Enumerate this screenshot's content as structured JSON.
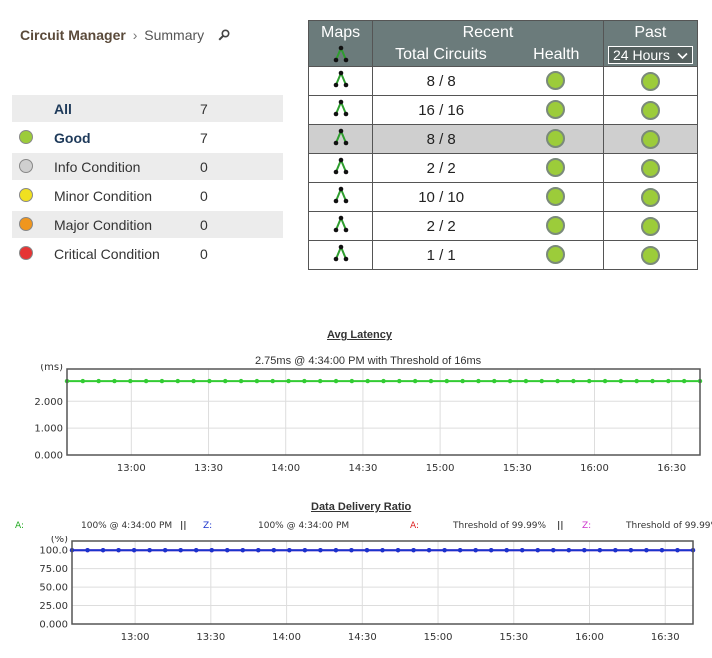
{
  "header": {
    "app_title": "Circuit Manager",
    "separator": "›",
    "page_title": "Summary"
  },
  "summary": {
    "rows": [
      {
        "label": "All",
        "count": "7",
        "color": null
      },
      {
        "label": "Good",
        "count": "7",
        "color": "#9ccc3a"
      },
      {
        "label": "Info Condition",
        "count": "0",
        "color": "#cfcfcf"
      },
      {
        "label": "Minor Condition",
        "count": "0",
        "color": "#f0e020"
      },
      {
        "label": "Major Condition",
        "count": "0",
        "color": "#f0961e"
      },
      {
        "label": "Critical Condition",
        "count": "0",
        "color": "#e53535"
      }
    ]
  },
  "maps_table": {
    "headers": {
      "maps": "Maps",
      "recent": "Recent",
      "past": "Past",
      "total_circuits": "Total Circuits",
      "health": "Health",
      "period": "24 Hours"
    },
    "rows": [
      {
        "total_circuits": "8 / 8",
        "health_color": "#9ccc3a",
        "past_color": "#9ccc3a"
      },
      {
        "total_circuits": "16 / 16",
        "health_color": "#9ccc3a",
        "past_color": "#9ccc3a"
      },
      {
        "total_circuits": "8 / 8",
        "health_color": "#9ccc3a",
        "past_color": "#9ccc3a"
      },
      {
        "total_circuits": "2 / 2",
        "health_color": "#9ccc3a",
        "past_color": "#9ccc3a"
      },
      {
        "total_circuits": "10 / 10",
        "health_color": "#9ccc3a",
        "past_color": "#9ccc3a"
      },
      {
        "total_circuits": "2 / 2",
        "health_color": "#9ccc3a",
        "past_color": "#9ccc3a"
      },
      {
        "total_circuits": "1 / 1",
        "health_color": "#9ccc3a",
        "past_color": "#9ccc3a"
      }
    ]
  },
  "latency_chart": {
    "title": "Avg Latency",
    "subtitle": "2.75ms @ 4:34:00 PM  with Threshold of 16ms"
  },
  "delivery_chart": {
    "title": "Data Delivery Ratio",
    "legend": {
      "a_label": "A:",
      "a_value": "100% @ 4:34:00 PM",
      "separator": "||",
      "z_label": "Z:",
      "z_value": "100% @ 4:34:00 PM",
      "a_threshold_label": "A:",
      "a_threshold": "Threshold of 99.99%",
      "z_threshold_label": "Z:",
      "z_threshold": "Threshold of 99.99%"
    }
  },
  "chart_data": [
    {
      "type": "line",
      "title": "Avg Latency",
      "ylabel": "(ms)",
      "xlabel": "",
      "ylim": [
        0,
        3.2
      ],
      "yticks": [
        "0.000",
        "1.000",
        "2.000"
      ],
      "ytick_values": [
        0,
        1,
        2
      ],
      "xticks": [
        "13:00",
        "13:30",
        "14:00",
        "14:30",
        "15:00",
        "15:30",
        "16:00",
        "16:30"
      ],
      "xtick_values": [
        780,
        810,
        840,
        870,
        900,
        930,
        960,
        990
      ],
      "xlim": [
        755,
        1001
      ],
      "grid": true,
      "series": [
        {
          "color": "#33cc33",
          "x_start": 755,
          "x_step": 6.15,
          "count": 41,
          "values_constant": 2.75
        }
      ]
    },
    {
      "type": "line",
      "title": "Data Delivery Ratio",
      "ylabel": "(%)",
      "xlabel": "",
      "ylim": [
        0,
        112.5
      ],
      "yticks": [
        "0.000",
        "25.00",
        "50.00",
        "75.00",
        "100.0"
      ],
      "ytick_values": [
        0,
        25,
        50,
        75,
        100
      ],
      "xticks": [
        "13:00",
        "13:30",
        "14:00",
        "14:30",
        "15:00",
        "15:30",
        "16:00",
        "16:30"
      ],
      "xtick_values": [
        780,
        810,
        840,
        870,
        900,
        930,
        960,
        990
      ],
      "xlim": [
        755,
        1001
      ],
      "grid": true,
      "series": [
        {
          "color": "#1a33cc",
          "x_start": 755,
          "x_step": 6.15,
          "count": 41,
          "values_constant": 100
        },
        {
          "color": "#cc33cc",
          "x_start": 755,
          "x_step": 6.15,
          "count": 41,
          "values_constant": 100
        }
      ]
    }
  ]
}
